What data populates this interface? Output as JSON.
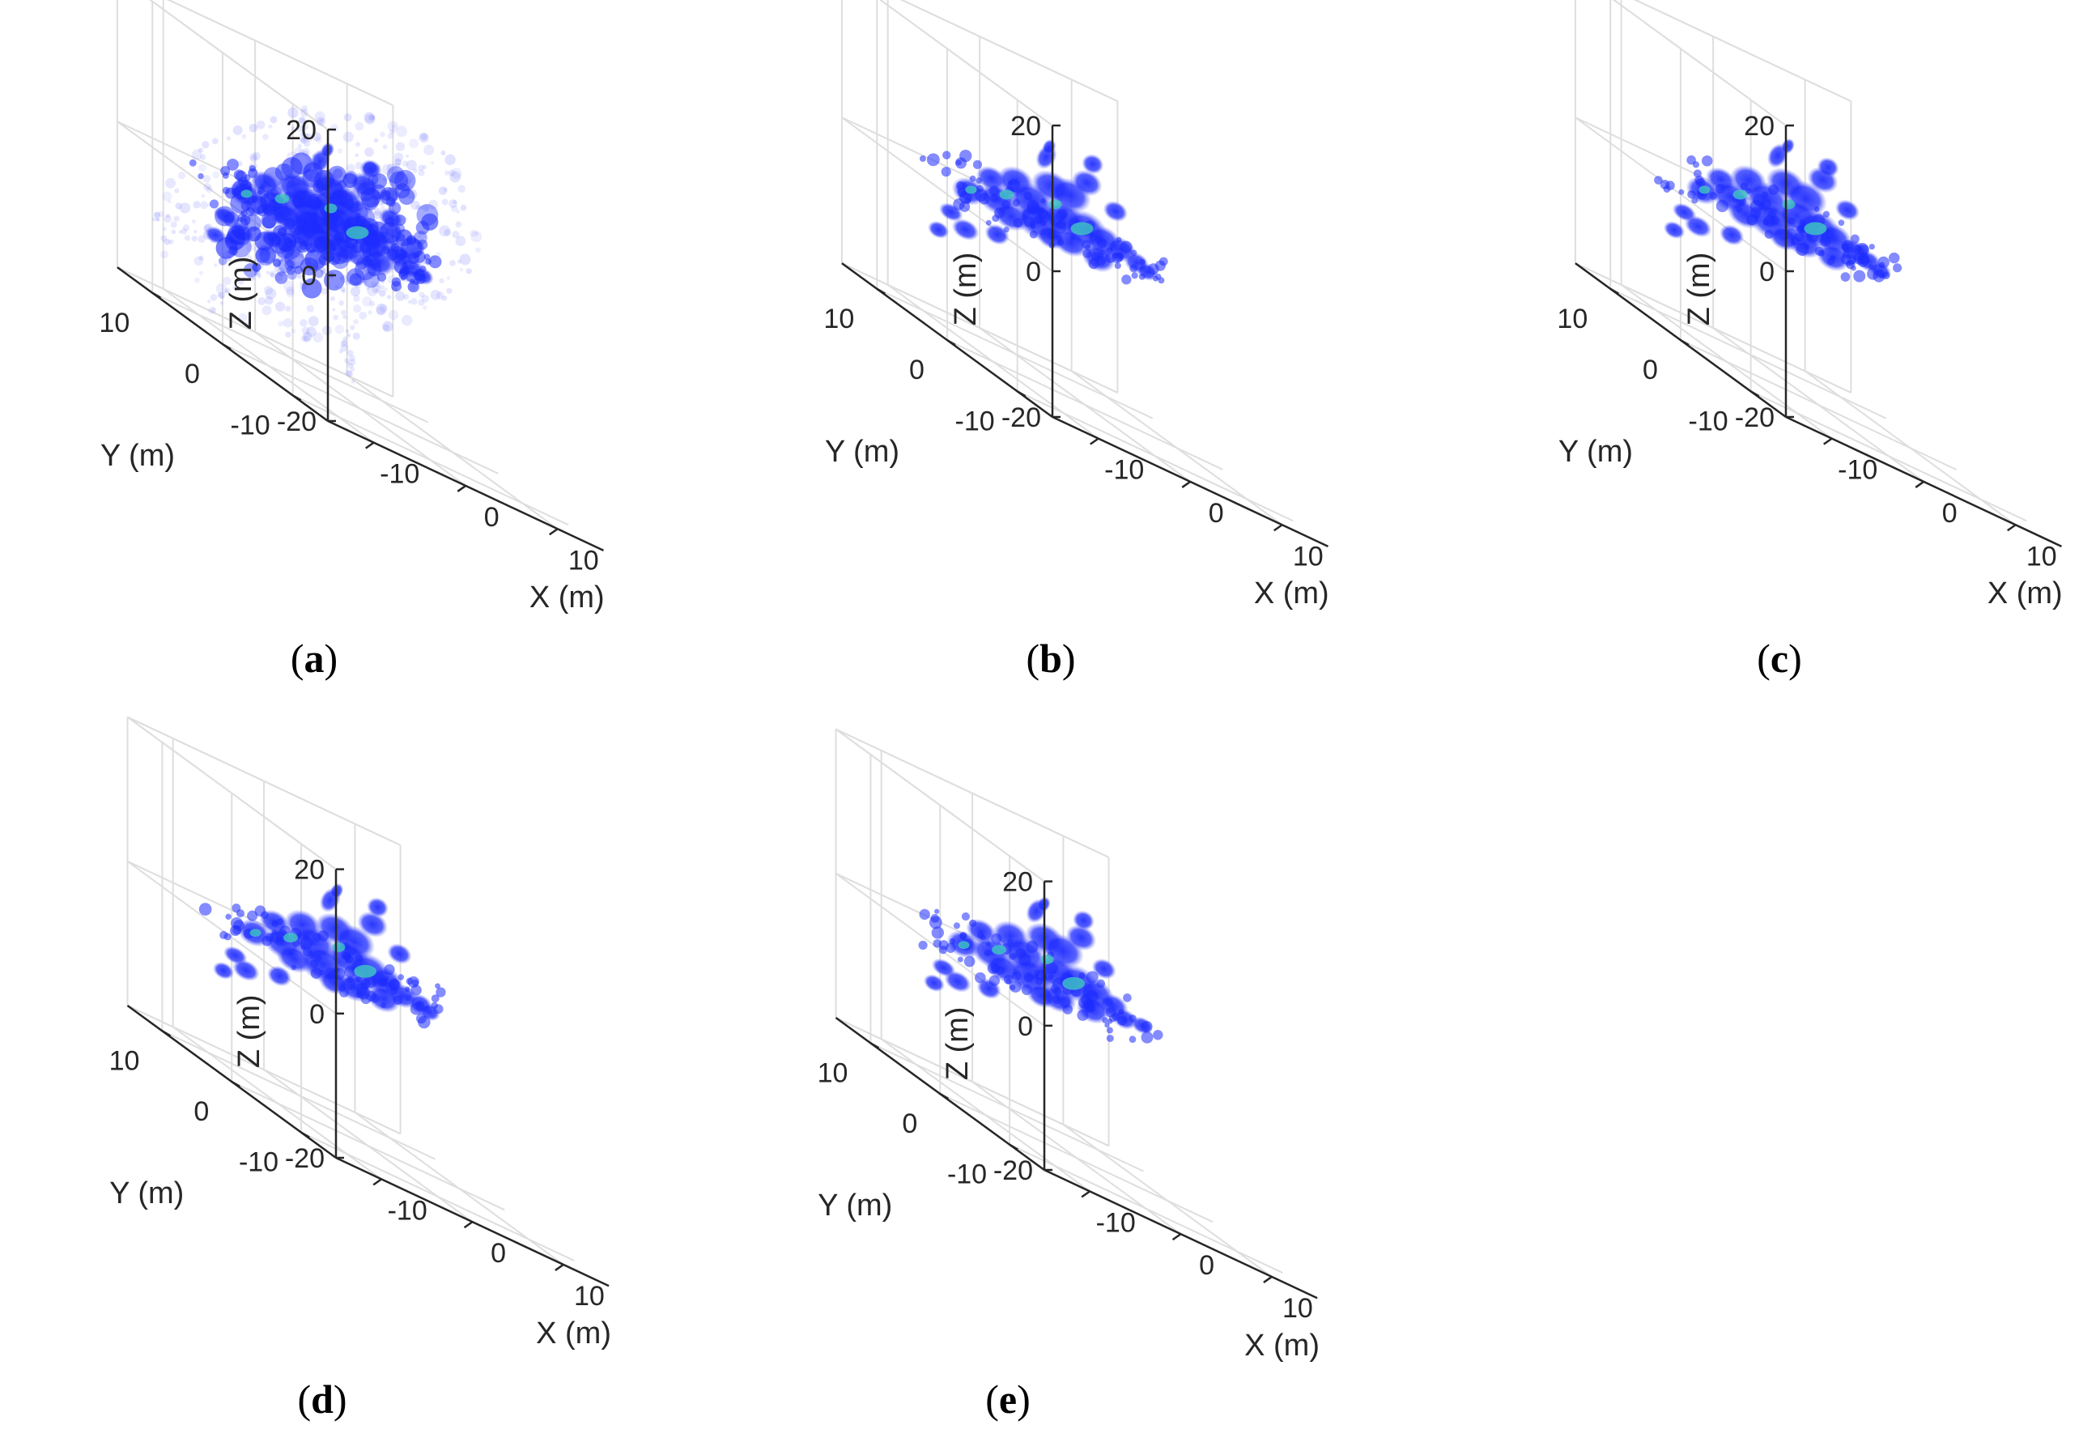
{
  "figure": {
    "panels": [
      {
        "label_open": "(",
        "label_letter": "a",
        "label_close": ")"
      },
      {
        "label_open": "(",
        "label_letter": "b",
        "label_close": ")"
      },
      {
        "label_open": "(",
        "label_letter": "c",
        "label_close": ")"
      },
      {
        "label_open": "(",
        "label_letter": "d",
        "label_close": ")"
      },
      {
        "label_open": "(",
        "label_letter": "e",
        "label_close": ")"
      }
    ]
  },
  "chart_data": [
    {
      "type": "scatter",
      "subplot": "a",
      "description_kind": "3D volumetric point cloud",
      "xlabel": "X (m)",
      "ylabel": "Y (m)",
      "zlabel": "Z (m)",
      "xlim": [
        -15,
        15
      ],
      "ylim": [
        -15,
        15
      ],
      "zlim": [
        -20,
        20
      ],
      "xticks": [
        -10,
        0,
        10
      ],
      "xtick_labels": [
        "-10",
        "0",
        "10"
      ],
      "yticks": [
        -10,
        0,
        10
      ],
      "ytick_labels": [
        "-10",
        "0",
        "10"
      ],
      "zticks": [
        -20,
        0,
        20
      ],
      "ztick_labels": [
        "-20",
        "0",
        "20"
      ],
      "grid": true,
      "colors": {
        "core": "#1e2cff",
        "halo": "#6f73ff",
        "hot": "#3fc7c0"
      },
      "sidelobes": true
    },
    {
      "type": "scatter",
      "subplot": "b",
      "description_kind": "3D volumetric point cloud",
      "xlabel": "X (m)",
      "ylabel": "Y (m)",
      "zlabel": "Z (m)",
      "xlim": [
        -15,
        15
      ],
      "ylim": [
        -15,
        15
      ],
      "zlim": [
        -20,
        20
      ],
      "xticks": [
        -10,
        0,
        10
      ],
      "xtick_labels": [
        "-10",
        "0",
        "10"
      ],
      "yticks": [
        -10,
        0,
        10
      ],
      "ytick_labels": [
        "-10",
        "0",
        "10"
      ],
      "zticks": [
        -20,
        0,
        20
      ],
      "ztick_labels": [
        "-20",
        "0",
        "20"
      ],
      "grid": true,
      "colors": {
        "core": "#1e2cff",
        "halo": "#6f73ff",
        "hot": "#3fc7c0"
      },
      "sidelobes": false
    },
    {
      "type": "scatter",
      "subplot": "c",
      "description_kind": "3D volumetric point cloud",
      "xlabel": "X (m)",
      "ylabel": "Y (m)",
      "zlabel": "Z (m)",
      "xlim": [
        -15,
        15
      ],
      "ylim": [
        -15,
        15
      ],
      "zlim": [
        -20,
        20
      ],
      "xticks": [
        -10,
        0,
        10
      ],
      "xtick_labels": [
        "-10",
        "0",
        "10"
      ],
      "yticks": [
        -10,
        0,
        10
      ],
      "ytick_labels": [
        "-10",
        "0",
        "10"
      ],
      "zticks": [
        -20,
        0,
        20
      ],
      "ztick_labels": [
        "-20",
        "0",
        "20"
      ],
      "grid": true,
      "colors": {
        "core": "#1e2cff",
        "halo": "#6f73ff",
        "hot": "#3fc7c0"
      },
      "sidelobes": false
    },
    {
      "type": "scatter",
      "subplot": "d",
      "description_kind": "3D volumetric point cloud",
      "xlabel": "X (m)",
      "ylabel": "Y (m)",
      "zlabel": "Z (m)",
      "xlim": [
        -15,
        15
      ],
      "ylim": [
        -15,
        15
      ],
      "zlim": [
        -20,
        20
      ],
      "xticks": [
        -10,
        0,
        10
      ],
      "xtick_labels": [
        "-10",
        "0",
        "10"
      ],
      "yticks": [
        -10,
        0,
        10
      ],
      "ytick_labels": [
        "-10",
        "0",
        "10"
      ],
      "zticks": [
        -20,
        0,
        20
      ],
      "ztick_labels": [
        "-20",
        "0",
        "20"
      ],
      "grid": true,
      "colors": {
        "core": "#1e2cff",
        "halo": "#6f73ff",
        "hot": "#3fc7c0"
      },
      "sidelobes": false
    },
    {
      "type": "scatter",
      "subplot": "e",
      "description_kind": "3D volumetric point cloud",
      "xlabel": "X (m)",
      "ylabel": "Y (m)",
      "zlabel": "Z (m)",
      "xlim": [
        -15,
        15
      ],
      "ylim": [
        -15,
        15
      ],
      "zlim": [
        -20,
        20
      ],
      "xticks": [
        -10,
        0,
        10
      ],
      "xtick_labels": [
        "-10",
        "0",
        "10"
      ],
      "yticks": [
        -10,
        0,
        10
      ],
      "ytick_labels": [
        "-10",
        "0",
        "10"
      ],
      "zticks": [
        -20,
        0,
        20
      ],
      "ztick_labels": [
        "-20",
        "0",
        "20"
      ],
      "grid": true,
      "colors": {
        "core": "#1e2cff",
        "halo": "#6f73ff",
        "hot": "#3fc7c0"
      },
      "sidelobes": false
    }
  ]
}
